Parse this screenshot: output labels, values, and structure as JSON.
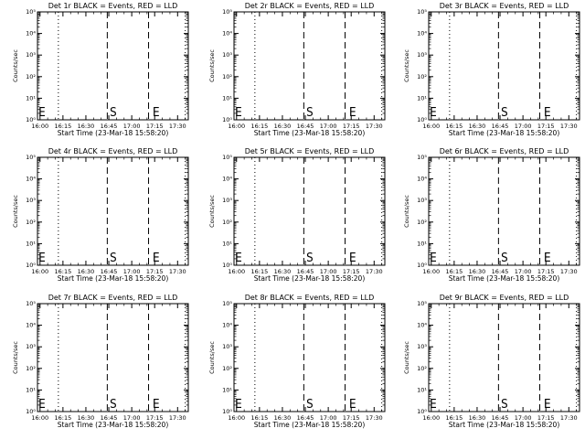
{
  "figure": {
    "xlabel": "Start Time (23-Mar-18 15:58:20)",
    "ylabel": "Counts/sec"
  },
  "chart_data": [
    {
      "type": "line",
      "title": "Det 1r BLACK = Events, RED = LLD",
      "xlabel": "Start Time (23-Mar-18 15:58:20)",
      "ylabel": "Counts/sec",
      "x_ticks": [
        "16:00",
        "16:15",
        "16:30",
        "16:45",
        "17:00",
        "17:15",
        "17:30"
      ],
      "y_ticks": [
        "10⁰",
        "10¹",
        "10²",
        "10³",
        "10⁴",
        "10⁵"
      ],
      "y_scale": "log",
      "ylim": [
        1,
        100000
      ],
      "xlim": [
        "15:58:20",
        "17:37"
      ],
      "markers": [
        {
          "label": "E",
          "time": "15:58"
        },
        {
          "label": "S",
          "time": "16:45"
        },
        {
          "label": "E",
          "time": "17:13"
        }
      ],
      "dotted_lines": [
        "16:12",
        "17:35"
      ],
      "dashed_lines": [
        "16:44",
        "17:11"
      ],
      "series": []
    },
    {
      "type": "line",
      "title": "Det 2r BLACK = Events, RED = LLD",
      "xlabel": "Start Time (23-Mar-18 15:58:20)",
      "ylabel": "Counts/sec",
      "x_ticks": [
        "16:00",
        "16:15",
        "16:30",
        "16:45",
        "17:00",
        "17:15",
        "17:30"
      ],
      "y_ticks": [
        "10⁰",
        "10¹",
        "10²",
        "10³",
        "10⁴",
        "10⁵"
      ],
      "y_scale": "log",
      "ylim": [
        1,
        100000
      ],
      "xlim": [
        "15:58:20",
        "17:37"
      ],
      "markers": [
        {
          "label": "E",
          "time": "15:58"
        },
        {
          "label": "S",
          "time": "16:45"
        },
        {
          "label": "E",
          "time": "17:13"
        }
      ],
      "dotted_lines": [
        "16:12",
        "17:35"
      ],
      "dashed_lines": [
        "16:44",
        "17:11"
      ],
      "series": []
    },
    {
      "type": "line",
      "title": "Det 3r BLACK = Events, RED = LLD",
      "xlabel": "Start Time (23-Mar-18 15:58:20)",
      "ylabel": "Counts/sec",
      "x_ticks": [
        "16:00",
        "16:15",
        "16:30",
        "16:45",
        "17:00",
        "17:15",
        "17:30"
      ],
      "y_ticks": [
        "10⁰",
        "10¹",
        "10²",
        "10³",
        "10⁴",
        "10⁵"
      ],
      "y_scale": "log",
      "ylim": [
        1,
        100000
      ],
      "xlim": [
        "15:58:20",
        "17:37"
      ],
      "markers": [
        {
          "label": "E",
          "time": "15:58"
        },
        {
          "label": "S",
          "time": "16:45"
        },
        {
          "label": "E",
          "time": "17:13"
        }
      ],
      "dotted_lines": [
        "16:12",
        "17:35"
      ],
      "dashed_lines": [
        "16:44",
        "17:11"
      ],
      "series": []
    },
    {
      "type": "line",
      "title": "Det 4r BLACK = Events, RED = LLD",
      "xlabel": "Start Time (23-Mar-18 15:58:20)",
      "ylabel": "Counts/sec",
      "x_ticks": [
        "16:00",
        "16:15",
        "16:30",
        "16:45",
        "17:00",
        "17:15",
        "17:30"
      ],
      "y_ticks": [
        "10⁰",
        "10¹",
        "10²",
        "10³",
        "10⁴",
        "10⁵"
      ],
      "y_scale": "log",
      "ylim": [
        1,
        100000
      ],
      "xlim": [
        "15:58:20",
        "17:37"
      ],
      "markers": [
        {
          "label": "E",
          "time": "15:58"
        },
        {
          "label": "S",
          "time": "16:45"
        },
        {
          "label": "E",
          "time": "17:13"
        }
      ],
      "dotted_lines": [
        "16:12",
        "17:35"
      ],
      "dashed_lines": [
        "16:44",
        "17:11"
      ],
      "series": []
    },
    {
      "type": "line",
      "title": "Det 5r BLACK = Events, RED = LLD",
      "xlabel": "Start Time (23-Mar-18 15:58:20)",
      "ylabel": "Counts/sec",
      "x_ticks": [
        "16:00",
        "16:15",
        "16:30",
        "16:45",
        "17:00",
        "17:15",
        "17:30"
      ],
      "y_ticks": [
        "10⁰",
        "10¹",
        "10²",
        "10³",
        "10⁴",
        "10⁵"
      ],
      "y_scale": "log",
      "ylim": [
        1,
        100000
      ],
      "xlim": [
        "15:58:20",
        "17:37"
      ],
      "markers": [
        {
          "label": "E",
          "time": "15:58"
        },
        {
          "label": "S",
          "time": "16:45"
        },
        {
          "label": "E",
          "time": "17:13"
        }
      ],
      "dotted_lines": [
        "16:12",
        "17:35"
      ],
      "dashed_lines": [
        "16:44",
        "17:11"
      ],
      "series": []
    },
    {
      "type": "line",
      "title": "Det 6r BLACK = Events, RED = LLD",
      "xlabel": "Start Time (23-Mar-18 15:58:20)",
      "ylabel": "Counts/sec",
      "x_ticks": [
        "16:00",
        "16:15",
        "16:30",
        "16:45",
        "17:00",
        "17:15",
        "17:30"
      ],
      "y_ticks": [
        "10⁰",
        "10¹",
        "10²",
        "10³",
        "10⁴",
        "10⁵"
      ],
      "y_scale": "log",
      "ylim": [
        1,
        100000
      ],
      "xlim": [
        "15:58:20",
        "17:37"
      ],
      "markers": [
        {
          "label": "E",
          "time": "15:58"
        },
        {
          "label": "S",
          "time": "16:45"
        },
        {
          "label": "E",
          "time": "17:13"
        }
      ],
      "dotted_lines": [
        "16:12",
        "17:35"
      ],
      "dashed_lines": [
        "16:44",
        "17:11"
      ],
      "series": []
    },
    {
      "type": "line",
      "title": "Det 7r BLACK = Events, RED = LLD",
      "xlabel": "Start Time (23-Mar-18 15:58:20)",
      "ylabel": "Counts/sec",
      "x_ticks": [
        "16:00",
        "16:15",
        "16:30",
        "16:45",
        "17:00",
        "17:15",
        "17:30"
      ],
      "y_ticks": [
        "10⁰",
        "10¹",
        "10²",
        "10³",
        "10⁴",
        "10⁵"
      ],
      "y_scale": "log",
      "ylim": [
        1,
        100000
      ],
      "xlim": [
        "15:58:20",
        "17:37"
      ],
      "markers": [
        {
          "label": "E",
          "time": "15:58"
        },
        {
          "label": "S",
          "time": "16:45"
        },
        {
          "label": "E",
          "time": "17:13"
        }
      ],
      "dotted_lines": [
        "16:12",
        "17:35"
      ],
      "dashed_lines": [
        "16:44",
        "17:11"
      ],
      "series": []
    },
    {
      "type": "line",
      "title": "Det 8r BLACK = Events, RED = LLD",
      "xlabel": "Start Time (23-Mar-18 15:58:20)",
      "ylabel": "Counts/sec",
      "x_ticks": [
        "16:00",
        "16:15",
        "16:30",
        "16:45",
        "17:00",
        "17:15",
        "17:30"
      ],
      "y_ticks": [
        "10⁰",
        "10¹",
        "10²",
        "10³",
        "10⁴",
        "10⁵"
      ],
      "y_scale": "log",
      "ylim": [
        1,
        100000
      ],
      "xlim": [
        "15:58:20",
        "17:37"
      ],
      "markers": [
        {
          "label": "E",
          "time": "15:58"
        },
        {
          "label": "S",
          "time": "16:45"
        },
        {
          "label": "E",
          "time": "17:13"
        }
      ],
      "dotted_lines": [
        "16:12",
        "17:35"
      ],
      "dashed_lines": [
        "16:44",
        "17:11"
      ],
      "series": []
    },
    {
      "type": "line",
      "title": "Det 9r BLACK = Events, RED = LLD",
      "xlabel": "Start Time (23-Mar-18 15:58:20)",
      "ylabel": "Counts/sec",
      "x_ticks": [
        "16:00",
        "16:15",
        "16:30",
        "16:45",
        "17:00",
        "17:15",
        "17:30"
      ],
      "y_ticks": [
        "10⁰",
        "10¹",
        "10²",
        "10³",
        "10⁴",
        "10⁵"
      ],
      "y_scale": "log",
      "ylim": [
        1,
        100000
      ],
      "xlim": [
        "15:58:20",
        "17:37"
      ],
      "markers": [
        {
          "label": "E",
          "time": "15:58"
        },
        {
          "label": "S",
          "time": "16:45"
        },
        {
          "label": "E",
          "time": "17:13"
        }
      ],
      "dotted_lines": [
        "16:12",
        "17:35"
      ],
      "dashed_lines": [
        "16:44",
        "17:11"
      ],
      "series": []
    }
  ]
}
